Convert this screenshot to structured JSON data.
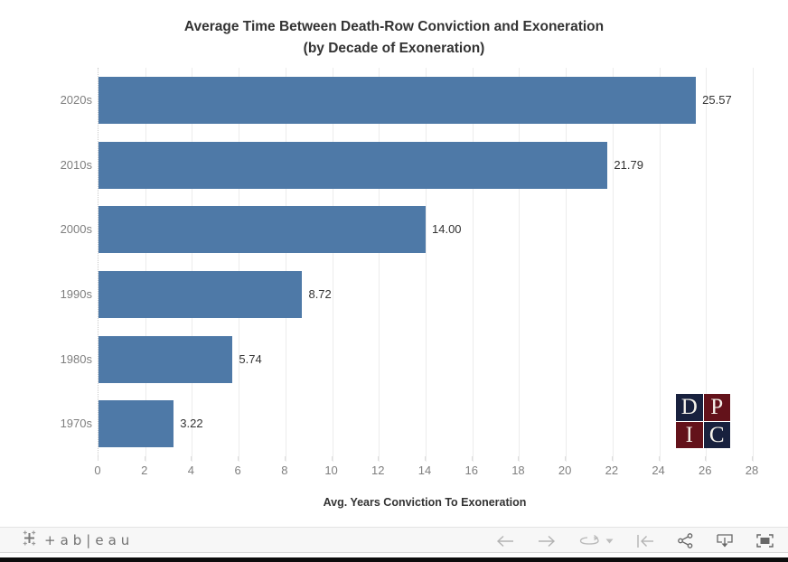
{
  "title": {
    "line1": "Average Time Between Death-Row Conviction and Exoneration",
    "line2": "(by Decade of Exoneration)"
  },
  "chart_data": {
    "type": "bar",
    "orientation": "horizontal",
    "categories": [
      "2020s",
      "2010s",
      "2000s",
      "1990s",
      "1980s",
      "1970s"
    ],
    "values": [
      25.57,
      21.79,
      14.0,
      8.72,
      5.74,
      3.22
    ],
    "value_labels": [
      "25.57",
      "21.79",
      "14.00",
      "8.72",
      "5.74",
      "3.22"
    ],
    "title": "Average Time Between Death-Row Conviction and Exoneration (by Decade of Exoneration)",
    "xlabel": "Avg. Years Conviction To Exoneration",
    "ylabel": "",
    "xlim": [
      0,
      28
    ],
    "xticks": [
      0,
      2,
      4,
      6,
      8,
      10,
      12,
      14,
      16,
      18,
      20,
      22,
      24,
      26,
      28
    ],
    "grid": true,
    "bar_color": "#4e79a7",
    "legend": "none"
  },
  "logo": {
    "letters": [
      "D",
      "P",
      "I",
      "C"
    ],
    "navy": "#18213e",
    "maroon": "#63121a"
  },
  "toolbar": {
    "brand_wordmark": "+ab|eau",
    "icons": [
      {
        "name": "undo"
      },
      {
        "name": "redo"
      },
      {
        "name": "replay"
      },
      {
        "name": "replay-speed-caret"
      },
      {
        "name": "reset"
      },
      {
        "name": "share"
      },
      {
        "name": "download"
      },
      {
        "name": "fullscreen"
      }
    ]
  }
}
